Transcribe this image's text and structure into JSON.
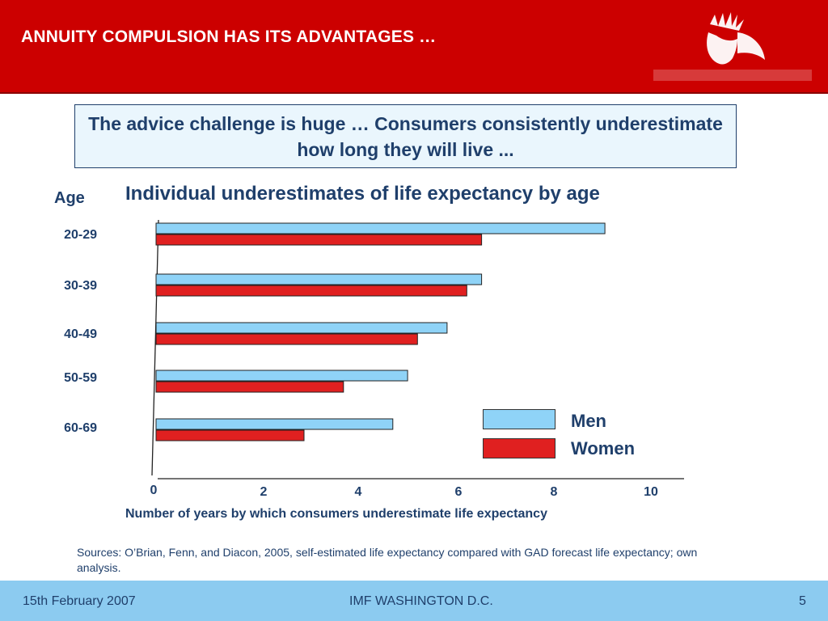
{
  "header": {
    "title": "ANNUITY COMPULSION HAS ITS ADVANTAGES …",
    "colors": {
      "background": "#cc0000",
      "text": "#ffffff"
    },
    "logo_icon": "woman-head-logo-icon"
  },
  "callout": {
    "text": "The advice challenge is huge … Consumers consistently underestimate how long they will live  ..."
  },
  "chart_data": {
    "type": "bar",
    "orientation": "horizontal",
    "title": "Individual underestimates of life expectancy by age",
    "ylabel": "Age",
    "xlabel": "Number of years by which consumers underestimate life expectancy",
    "categories": [
      "20-29",
      "30-39",
      "40-49",
      "50-59",
      "60-69"
    ],
    "series": [
      {
        "name": "Men",
        "color": "#8fd3f7",
        "values": [
          9.1,
          6.6,
          5.9,
          5.1,
          4.8
        ]
      },
      {
        "name": "Women",
        "color": "#e02020",
        "values": [
          6.6,
          6.3,
          5.3,
          3.8,
          3.0
        ]
      }
    ],
    "xlim": [
      0,
      10.5
    ],
    "xticks": [
      "0",
      "2",
      "4",
      "6",
      "8",
      "10"
    ],
    "grid": false,
    "legend": "bottom-right"
  },
  "sources": "Sources: O’Brian, Fenn, and Diacon, 2005, self-estimated life expectancy compared with GAD forecast life expectancy; own analysis.",
  "footer": {
    "date": "15th February 2007",
    "event": "IMF WASHINGTON D.C.",
    "page": "5",
    "colors": {
      "background": "#8ccbf0"
    }
  }
}
